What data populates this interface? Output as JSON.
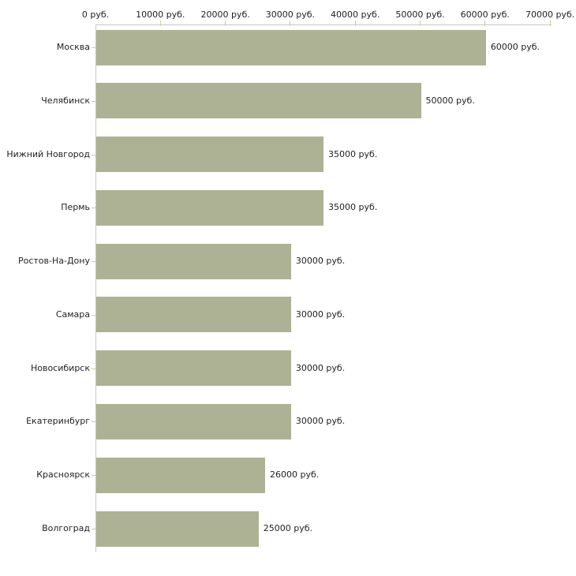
{
  "chart_data": {
    "type": "bar",
    "orientation": "horizontal",
    "title": "",
    "xlabel": "",
    "ylabel": "",
    "xlim": [
      0,
      70000
    ],
    "grid": false,
    "legend": null,
    "x_ticks": [
      0,
      10000,
      20000,
      30000,
      40000,
      50000,
      60000,
      70000
    ],
    "x_tick_labels": [
      "0 руб.",
      "10000 руб.",
      "20000 руб.",
      "30000 руб.",
      "40000 руб.",
      "50000 руб.",
      "60000 руб.",
      "70000 руб."
    ],
    "categories": [
      "Москва",
      "Челябинск",
      "Нижний Новгород",
      "Пермь",
      "Ростов-На-Дону",
      "Самара",
      "Новосибирск",
      "Екатеринбург",
      "Красноярск",
      "Волгоград"
    ],
    "values": [
      60000,
      50000,
      35000,
      35000,
      30000,
      30000,
      30000,
      30000,
      26000,
      25000
    ],
    "value_labels": [
      "60000 руб.",
      "50000 руб.",
      "35000 руб.",
      "35000 руб.",
      "30000 руб.",
      "30000 руб.",
      "30000 руб.",
      "30000 руб.",
      "26000 руб.",
      "25000 руб."
    ],
    "colors": {
      "bar": "#aeb294",
      "axis": "#c7c7c7",
      "tick": "#c9cba0",
      "text": "#1f1f1f",
      "background": "#ffffff"
    }
  }
}
